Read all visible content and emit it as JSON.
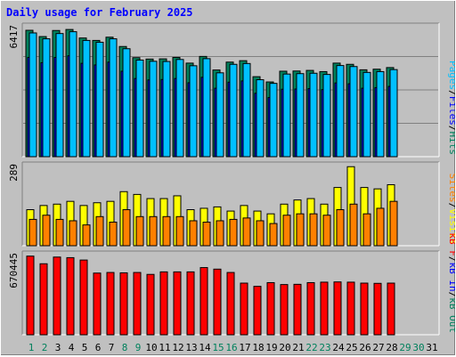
{
  "title": "Daily usage for February 2025",
  "colors": {
    "hits": "#00805c",
    "files": "#0000ff",
    "pages": "#00c0ff",
    "visits": "#ffff00",
    "sites": "#ff8000",
    "kb_f": "#ff0000",
    "kb_in": "#0000ff",
    "kb_out": "#00805c",
    "weekend_day": "#00805c",
    "weekday_day": "#000000",
    "panel_bg": "#c0c0c0"
  },
  "chart_data": [
    {
      "type": "bar",
      "panel": "hits-files-pages",
      "y_max_label": "6417",
      "ylim": [
        0,
        6417
      ],
      "legend": [
        "Pages",
        "/",
        "Files",
        "/",
        "Hits"
      ],
      "categories": [
        "1",
        "2",
        "3",
        "4",
        "5",
        "6",
        "7",
        "8",
        "9",
        "10",
        "11",
        "12",
        "13",
        "14",
        "15",
        "16",
        "17",
        "18",
        "19",
        "20",
        "21",
        "22",
        "23",
        "24",
        "25",
        "26",
        "27",
        "28"
      ],
      "series": [
        {
          "name": "Hits",
          "values": [
            6240,
            5930,
            6230,
            6280,
            5860,
            5740,
            5900,
            5440,
            4890,
            4820,
            4830,
            4900,
            4620,
            4950,
            4280,
            4670,
            4740,
            3950,
            3690,
            4220,
            4230,
            4260,
            4200,
            4620,
            4560,
            4290,
            4320,
            4400
          ]
        },
        {
          "name": "Files",
          "values": [
            4900,
            4640,
            4900,
            4980,
            4610,
            4530,
            4670,
            4220,
            3860,
            3790,
            3810,
            3860,
            3650,
            3920,
            3380,
            3680,
            3740,
            3130,
            2920,
            3330,
            3340,
            3360,
            3310,
            3640,
            3600,
            3380,
            3410,
            3470
          ]
        },
        {
          "name": "Pages",
          "values": [
            6110,
            5820,
            6080,
            6170,
            5740,
            5650,
            5820,
            5330,
            4770,
            4710,
            4700,
            4800,
            4490,
            4840,
            4140,
            4560,
            4600,
            3800,
            3620,
            4080,
            4100,
            4120,
            4060,
            4500,
            4450,
            4160,
            4200,
            4300
          ]
        }
      ]
    },
    {
      "type": "bar",
      "panel": "visits-sites",
      "y_max_label": "289",
      "ylim": [
        0,
        289
      ],
      "legend": [
        "Sites",
        "/",
        "Visits"
      ],
      "categories": [
        "1",
        "2",
        "3",
        "4",
        "5",
        "6",
        "7",
        "8",
        "9",
        "10",
        "11",
        "12",
        "13",
        "14",
        "15",
        "16",
        "17",
        "18",
        "19",
        "20",
        "21",
        "22",
        "23",
        "24",
        "25",
        "26",
        "27",
        "28"
      ],
      "series": [
        {
          "name": "Visits",
          "values": [
            130,
            145,
            150,
            160,
            145,
            155,
            160,
            195,
            185,
            170,
            170,
            180,
            130,
            135,
            140,
            125,
            145,
            125,
            115,
            150,
            165,
            170,
            150,
            210,
            285,
            210,
            205,
            220
          ]
        },
        {
          "name": "Sites",
          "values": [
            95,
            110,
            95,
            90,
            75,
            105,
            85,
            130,
            105,
            105,
            105,
            105,
            90,
            85,
            90,
            95,
            100,
            90,
            80,
            110,
            115,
            115,
            110,
            130,
            150,
            115,
            135,
            160
          ]
        }
      ]
    },
    {
      "type": "bar",
      "panel": "kbytes",
      "y_max_label": "670445",
      "ylim": [
        0,
        670445
      ],
      "legend": [
        "kB F",
        "/",
        "kB In",
        "/",
        "kB Out"
      ],
      "categories": [
        "1",
        "2",
        "3",
        "4",
        "5",
        "6",
        "7",
        "8",
        "9",
        "10",
        "11",
        "12",
        "13",
        "14",
        "15",
        "16",
        "17",
        "18",
        "19",
        "20",
        "21",
        "22",
        "23",
        "24",
        "25",
        "26",
        "27",
        "28"
      ],
      "series": [
        {
          "name": "kB F",
          "values": [
            658000,
            594000,
            650000,
            645000,
            625000,
            516000,
            521000,
            518000,
            521000,
            505000,
            526000,
            526000,
            526000,
            562000,
            549000,
            521000,
            432000,
            405000,
            436000,
            420000,
            422000,
            436000,
            440000,
            442000,
            440000,
            432000,
            430000,
            432000
          ]
        }
      ]
    }
  ],
  "x_axis": {
    "days": [
      "1",
      "2",
      "3",
      "4",
      "5",
      "6",
      "7",
      "8",
      "9",
      "10",
      "11",
      "12",
      "13",
      "14",
      "15",
      "16",
      "17",
      "18",
      "19",
      "20",
      "21",
      "22",
      "23",
      "24",
      "25",
      "26",
      "27",
      "28",
      "29",
      "30",
      "31"
    ],
    "weekend_days": [
      "1",
      "2",
      "8",
      "9",
      "15",
      "16",
      "22",
      "23",
      "29",
      "30"
    ]
  }
}
